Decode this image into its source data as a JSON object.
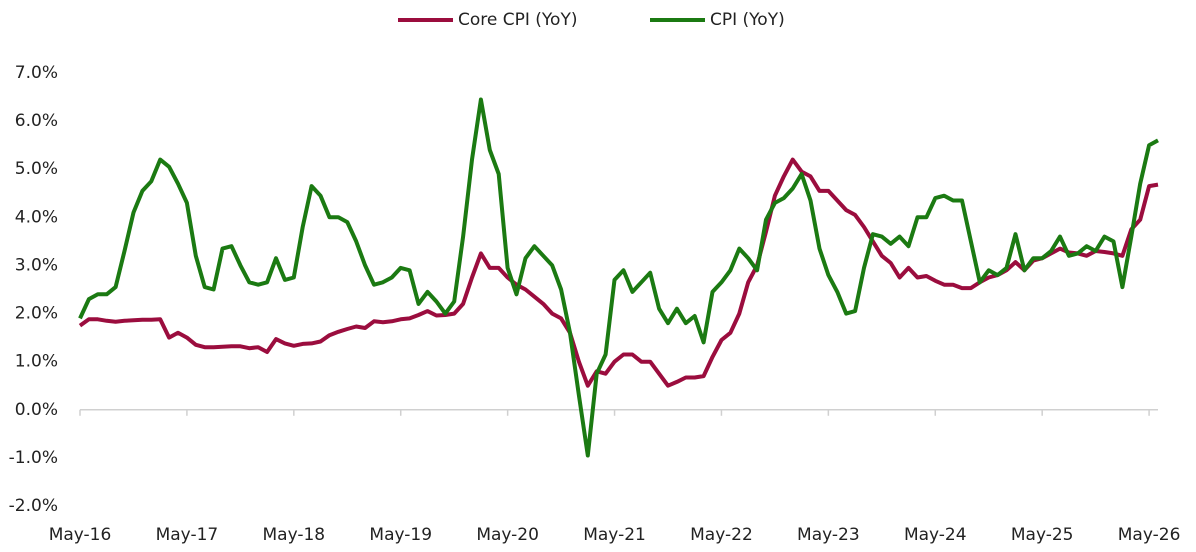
{
  "chart_data": {
    "type": "line",
    "categories": [
      "May-16",
      null,
      null,
      null,
      null,
      null,
      null,
      null,
      null,
      null,
      null,
      null,
      "May-17",
      null,
      null,
      null,
      null,
      null,
      null,
      null,
      null,
      null,
      null,
      null,
      "May-18",
      null,
      null,
      null,
      null,
      null,
      null,
      null,
      null,
      null,
      null,
      null,
      "May-19",
      null,
      null,
      null,
      null,
      null,
      null,
      null,
      null,
      null,
      null,
      null,
      "May-20",
      null,
      null,
      null,
      null,
      null,
      null,
      null,
      null,
      null,
      null,
      null,
      "May-21",
      null,
      null,
      null,
      null,
      null,
      null,
      null,
      null,
      null,
      null,
      null,
      "May-22",
      null,
      null,
      null,
      null,
      null,
      null,
      null,
      null,
      null,
      null,
      null,
      "May-23",
      null,
      null,
      null,
      null,
      null,
      null,
      null,
      null,
      null,
      null,
      null,
      "May-24",
      null,
      null,
      null,
      null,
      null,
      null,
      null,
      null,
      null,
      null,
      null,
      "May-25",
      null,
      null,
      null,
      null,
      null,
      null,
      null,
      null,
      null,
      null,
      null,
      "May-26",
      null
    ],
    "series": [
      {
        "name": "Core CPI (YoY)",
        "color": "#9b0d3e",
        "values": [
          1.75,
          1.88,
          1.88,
          1.85,
          1.83,
          1.85,
          1.86,
          1.87,
          1.87,
          1.88,
          1.5,
          1.6,
          1.5,
          1.35,
          1.3,
          1.3,
          1.31,
          1.32,
          1.32,
          1.28,
          1.3,
          1.2,
          1.47,
          1.38,
          1.33,
          1.37,
          1.38,
          1.42,
          1.55,
          1.62,
          1.68,
          1.73,
          1.7,
          1.84,
          1.82,
          1.84,
          1.88,
          1.9,
          1.97,
          2.05,
          1.96,
          1.97,
          2.0,
          2.2,
          2.75,
          3.25,
          2.95,
          2.95,
          2.75,
          2.6,
          2.5,
          2.35,
          2.2,
          2.0,
          1.9,
          1.6,
          1.0,
          0.5,
          0.8,
          0.75,
          1.0,
          1.15,
          1.15,
          1.0,
          1.0,
          0.75,
          0.5,
          0.58,
          0.67,
          0.67,
          0.7,
          1.1,
          1.45,
          1.6,
          2.0,
          2.65,
          3.0,
          3.7,
          4.45,
          4.85,
          5.2,
          4.95,
          4.85,
          4.55,
          4.55,
          4.35,
          4.15,
          4.05,
          3.8,
          3.5,
          3.2,
          3.05,
          2.75,
          2.95,
          2.75,
          2.78,
          2.68,
          2.6,
          2.6,
          2.53,
          2.53,
          2.65,
          2.75,
          2.8,
          2.9,
          3.07,
          2.9,
          3.1,
          3.15,
          3.25,
          3.35,
          3.27,
          3.25,
          3.2,
          3.3,
          3.28,
          3.25,
          3.2,
          3.75,
          3.95,
          4.65,
          4.68
        ]
      },
      {
        "name": "CPI (YoY)",
        "color": "#1b7a12",
        "values": [
          1.9,
          2.3,
          2.4,
          2.4,
          2.55,
          3.3,
          4.1,
          4.55,
          4.75,
          5.2,
          5.05,
          4.7,
          4.3,
          3.2,
          2.55,
          2.5,
          3.35,
          3.4,
          3.0,
          2.65,
          2.6,
          2.65,
          3.15,
          2.7,
          2.75,
          3.8,
          4.65,
          4.45,
          4.0,
          4.0,
          3.9,
          3.5,
          3.0,
          2.6,
          2.65,
          2.75,
          2.95,
          2.9,
          2.2,
          2.45,
          2.25,
          2.0,
          2.25,
          3.6,
          5.2,
          6.45,
          5.4,
          4.9,
          2.95,
          2.4,
          3.15,
          3.4,
          3.2,
          3.0,
          2.5,
          1.6,
          0.3,
          -0.95,
          0.75,
          1.15,
          2.7,
          2.9,
          2.45,
          2.65,
          2.85,
          2.1,
          1.8,
          2.1,
          1.8,
          1.95,
          1.4,
          2.45,
          2.65,
          2.9,
          3.35,
          3.15,
          2.9,
          3.95,
          4.3,
          4.4,
          4.6,
          4.9,
          4.35,
          3.35,
          2.8,
          2.45,
          2.0,
          2.05,
          2.95,
          3.65,
          3.6,
          3.45,
          3.6,
          3.4,
          4.0,
          4.0,
          4.4,
          4.45,
          4.35,
          4.35,
          3.5,
          2.65,
          2.9,
          2.8,
          2.95,
          3.65,
          2.9,
          3.15,
          3.15,
          3.3,
          3.6,
          3.2,
          3.25,
          3.4,
          3.3,
          3.6,
          3.5,
          2.55,
          3.6,
          4.7,
          5.5,
          5.6
        ]
      }
    ],
    "ylim": [
      -2,
      7
    ],
    "yticks": [
      {
        "value": -2,
        "label": "-2.0%"
      },
      {
        "value": -1,
        "label": "-1.0%"
      },
      {
        "value": 0,
        "label": "0.0%"
      },
      {
        "value": 1,
        "label": "1.0%"
      },
      {
        "value": 2,
        "label": "2.0%"
      },
      {
        "value": 3,
        "label": "3.0%"
      },
      {
        "value": 4,
        "label": "4.0%"
      },
      {
        "value": 5,
        "label": "5.0%"
      },
      {
        "value": 6,
        "label": "6.0%"
      },
      {
        "value": 7,
        "label": "7.0%"
      }
    ],
    "grid": false,
    "legend": "top"
  }
}
